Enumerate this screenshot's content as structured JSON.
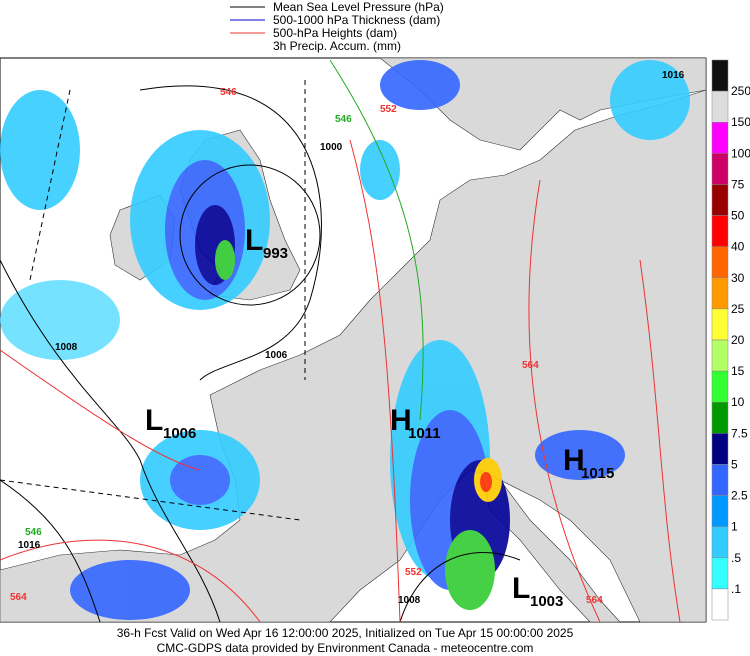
{
  "legend": [
    "Mean Sea Level Pressure (hPa)",
    "500-1000 hPa Thickness (dam)",
    "500-hPa Heights (dam)",
    "3h Precip. Accum. (mm)"
  ],
  "colorbar": [
    "250",
    "150",
    "100",
    "75",
    "50",
    "40",
    "30",
    "25",
    "20",
    "15",
    "10",
    "7.5",
    "5",
    "2.5",
    "1",
    ".5",
    ".1"
  ],
  "pressure_centers": [
    {
      "letter": "L",
      "value": "993"
    },
    {
      "letter": "L",
      "value": "1006"
    },
    {
      "letter": "H",
      "value": "1011"
    },
    {
      "letter": "H",
      "value": "1015"
    },
    {
      "letter": "L",
      "value": "1003"
    }
  ],
  "contour_labels": [
    "1000",
    "1006",
    "1008",
    "1016",
    "1008",
    "1016",
    "546",
    "552",
    "564",
    "564",
    "552",
    "564",
    "546",
    "546"
  ],
  "footer": [
    "36-h Fcst Valid on Wed Apr 16 12:00:00 2025, Initialized on Tue Apr 15 00:00:00 2025",
    "CMC-GDPS data provided by Environment Canada - meteocentre.com"
  ]
}
